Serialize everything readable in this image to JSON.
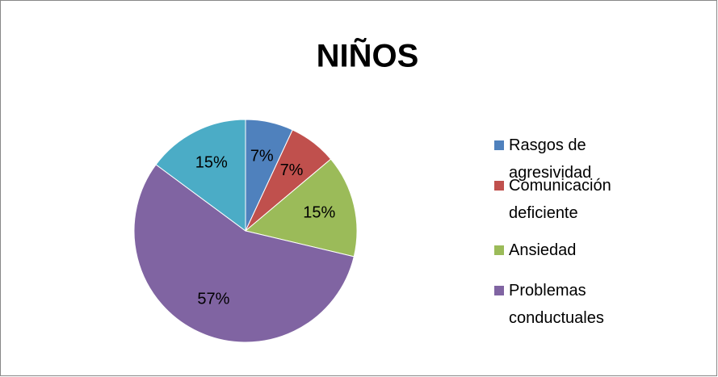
{
  "chart_data": {
    "type": "pie",
    "title": "NIÑOS",
    "categories": [
      "Rasgos de agresividad",
      "Comunicación deficiente",
      "Ansiedad",
      "Problemas conductuales",
      null
    ],
    "values": [
      7,
      7,
      15,
      57,
      15
    ],
    "value_labels": [
      "7%",
      "7%",
      "15%",
      "57%",
      "15%"
    ],
    "colors": [
      "#4f81bd",
      "#c0504d",
      "#9bbb59",
      "#8064a2",
      "#4bacc6"
    ],
    "legend": "right"
  }
}
